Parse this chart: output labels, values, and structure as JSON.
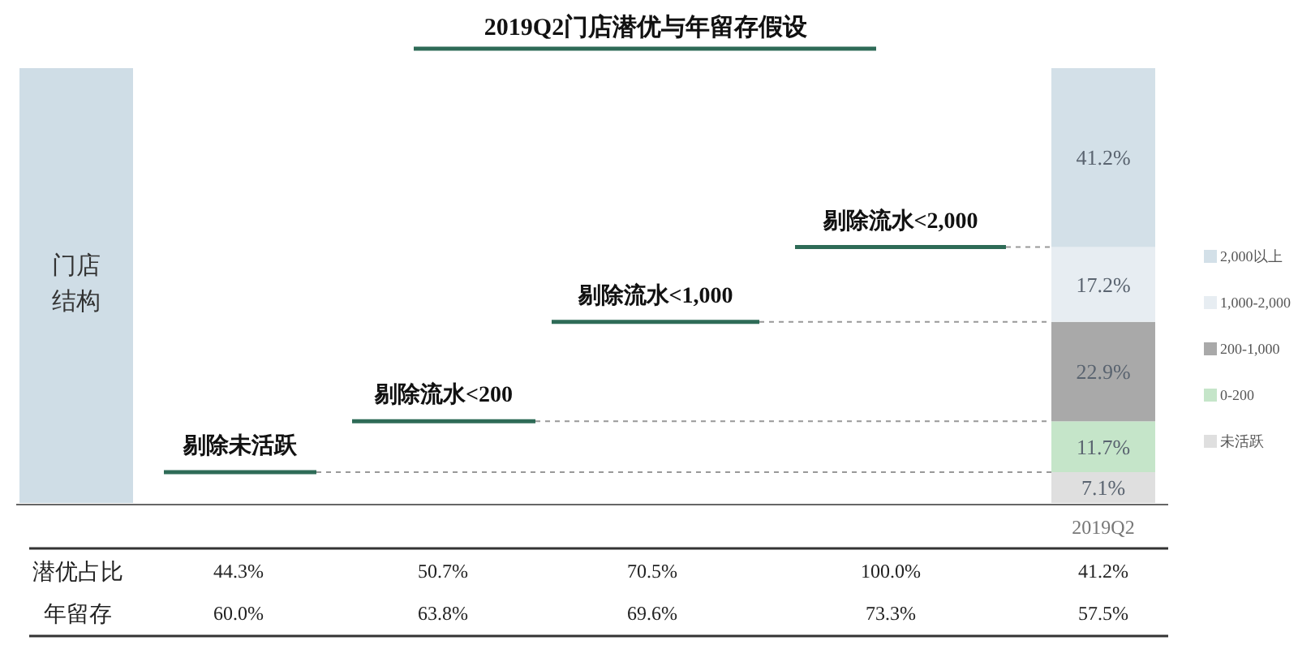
{
  "chart_data": {
    "type": "bar",
    "title": "2019Q2门店潜优与年留存假设",
    "categories": [
      "2019Q2"
    ],
    "stacked": true,
    "legend": "right",
    "series": [
      {
        "name": "未活跃",
        "color": "#dfdfdf",
        "values": [
          7.1
        ],
        "value_labels": [
          "7.1%"
        ]
      },
      {
        "name": "0-200",
        "color": "#c5e5c9",
        "values": [
          11.7
        ],
        "value_labels": [
          "11.7%"
        ]
      },
      {
        "name": "200-1,000",
        "color": "#a9a9a9",
        "values": [
          22.9
        ],
        "value_labels": [
          "22.9%"
        ]
      },
      {
        "name": "1,000-2,000",
        "color": "#e7edf2",
        "values": [
          17.2
        ],
        "value_labels": [
          "17.2%"
        ]
      },
      {
        "name": "2,000以上",
        "color": "#d3e0e8",
        "values": [
          41.2
        ],
        "value_labels": [
          "41.2%"
        ]
      }
    ],
    "ref_lines": [
      {
        "axis": "y",
        "value": 7.1,
        "label": "剔除未活跃",
        "color": "#2e6b57"
      },
      {
        "axis": "y",
        "value": 18.8,
        "label": "剔除流水<200",
        "color": "#2e6b57"
      },
      {
        "axis": "y",
        "value": 41.7,
        "label": "剔除流水<1,000",
        "color": "#2e6b57"
      },
      {
        "axis": "y",
        "value": 58.9,
        "label": "剔除流水<2,000",
        "color": "#2e6b57"
      }
    ],
    "annotations": [
      "门店结构",
      "潜优占比",
      "44.3%",
      "50.7%",
      "70.5%",
      "100.0%",
      "41.2%",
      "年留存",
      "60.0%",
      "63.8%",
      "69.6%",
      "73.3%",
      "57.5%"
    ]
  }
}
